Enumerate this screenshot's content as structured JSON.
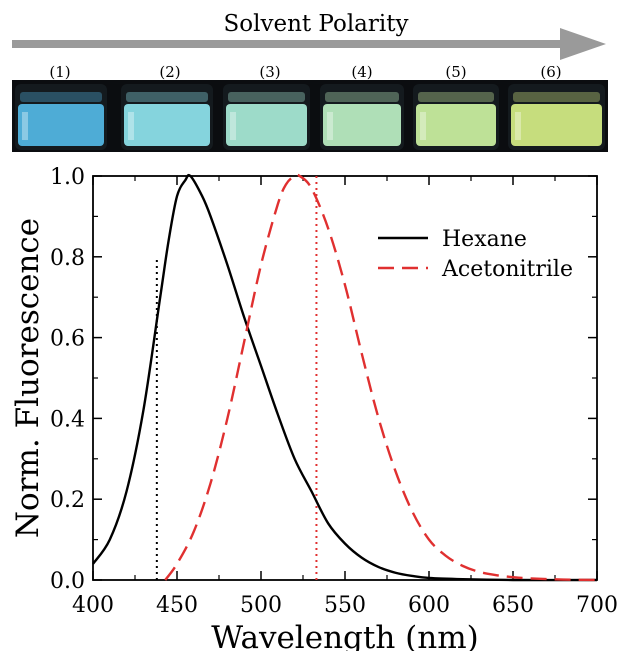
{
  "banner": {
    "label": "Solvent Polarity",
    "arrow_color": "#9a9a9a"
  },
  "vials": [
    {
      "label": "(1)",
      "glow": "#54b8e6"
    },
    {
      "label": "(2)",
      "glow": "#8fe4ee"
    },
    {
      "label": "(3)",
      "glow": "#a9ecd8"
    },
    {
      "label": "(4)",
      "glow": "#bdf0c4"
    },
    {
      "label": "(5)",
      "glow": "#cdf2a2"
    },
    {
      "label": "(6)",
      "glow": "#d6ee86"
    }
  ],
  "chart_data": {
    "type": "line",
    "xlabel": "Wavelength (nm)",
    "ylabel": "Norm. Fluorescence",
    "xlim": [
      400,
      700
    ],
    "ylim": [
      0,
      1
    ],
    "xticks": [
      "400",
      "450",
      "500",
      "550",
      "600",
      "650",
      "700"
    ],
    "yticks": [
      "0.0",
      "0.2",
      "0.4",
      "0.6",
      "0.8",
      "1.0"
    ],
    "grid": false,
    "legend": "top-right",
    "series": [
      {
        "name": "Hexane",
        "color": "#000000",
        "dash": "solid",
        "x": [
          400,
          410,
          420,
          430,
          440,
          445,
          450,
          455,
          458,
          465,
          470,
          480,
          490,
          500,
          510,
          520,
          530,
          540,
          550,
          560,
          570,
          580,
          590,
          600,
          620,
          650,
          700
        ],
        "y": [
          0.04,
          0.1,
          0.22,
          0.42,
          0.7,
          0.84,
          0.95,
          0.99,
          1.0,
          0.95,
          0.9,
          0.78,
          0.65,
          0.53,
          0.41,
          0.3,
          0.22,
          0.14,
          0.09,
          0.055,
          0.032,
          0.018,
          0.01,
          0.005,
          0.002,
          0.0,
          0.0
        ]
      },
      {
        "name": "Acetonitrile",
        "color": "#e03030",
        "dash": "dashed",
        "x": [
          443,
          450,
          460,
          470,
          480,
          490,
          500,
          510,
          515,
          520,
          523,
          530,
          540,
          550,
          560,
          570,
          580,
          590,
          600,
          610,
          620,
          630,
          640,
          650,
          660,
          680,
          700
        ],
        "y": [
          0.0,
          0.04,
          0.12,
          0.24,
          0.4,
          0.59,
          0.78,
          0.93,
          0.98,
          1.0,
          1.0,
          0.97,
          0.87,
          0.73,
          0.56,
          0.4,
          0.27,
          0.17,
          0.1,
          0.06,
          0.035,
          0.02,
          0.012,
          0.007,
          0.004,
          0.001,
          0.0
        ]
      }
    ],
    "markers": [
      {
        "x": 438,
        "y_top": 0.8,
        "color": "#000000",
        "style": "dotted"
      },
      {
        "x": 533,
        "y_top": 1.0,
        "color": "#e03030",
        "style": "dotted"
      }
    ]
  }
}
